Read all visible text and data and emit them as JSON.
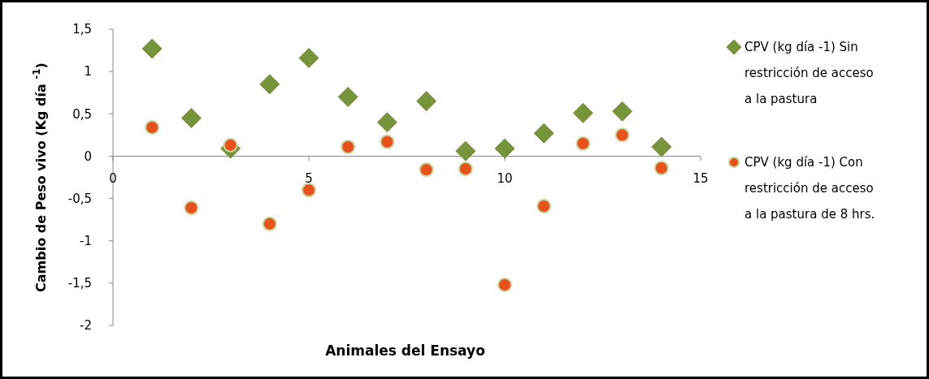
{
  "chart_data": {
    "type": "scatter",
    "xlabel": "Animales del Ensayo",
    "ylabel": "Cambio de Peso vivo  (Kg día $^{-1}$)",
    "x": [
      1,
      2,
      3,
      4,
      5,
      6,
      7,
      8,
      9,
      10,
      11,
      12,
      13,
      14
    ],
    "xlim": [
      0,
      15
    ],
    "xticks": [
      0,
      5,
      10,
      15
    ],
    "ylim": [
      -2,
      1.5
    ],
    "yticks": [
      {
        "value": -2,
        "label": "-2"
      },
      {
        "value": -1.5,
        "label": "-1,5"
      },
      {
        "value": -1,
        "label": "-1"
      },
      {
        "value": -0.5,
        "label": "-0,5"
      },
      {
        "value": 0,
        "label": "0"
      },
      {
        "value": 0.5,
        "label": "0,5"
      },
      {
        "value": 1,
        "label": "1"
      },
      {
        "value": 1.5,
        "label": "1,5"
      }
    ],
    "grid": false,
    "legend": "right",
    "series": [
      {
        "name": "CPV (kg día -1) Sin restricción de acceso a la pastura",
        "color": "#77933c",
        "marker": "diamond",
        "values": [
          1.27,
          0.45,
          0.09,
          0.85,
          1.16,
          0.7,
          0.4,
          0.65,
          0.06,
          0.09,
          0.27,
          0.51,
          0.53,
          0.11
        ]
      },
      {
        "name": "CPV (kg día -1) Con restricción de acceso a la pastura de 8 hrs.",
        "color": "#e8501c",
        "marker": "circle",
        "values": [
          0.34,
          -0.61,
          0.13,
          -0.8,
          -0.4,
          0.11,
          0.17,
          -0.16,
          -0.15,
          -1.52,
          -0.59,
          0.15,
          0.25,
          -0.14
        ]
      }
    ]
  }
}
